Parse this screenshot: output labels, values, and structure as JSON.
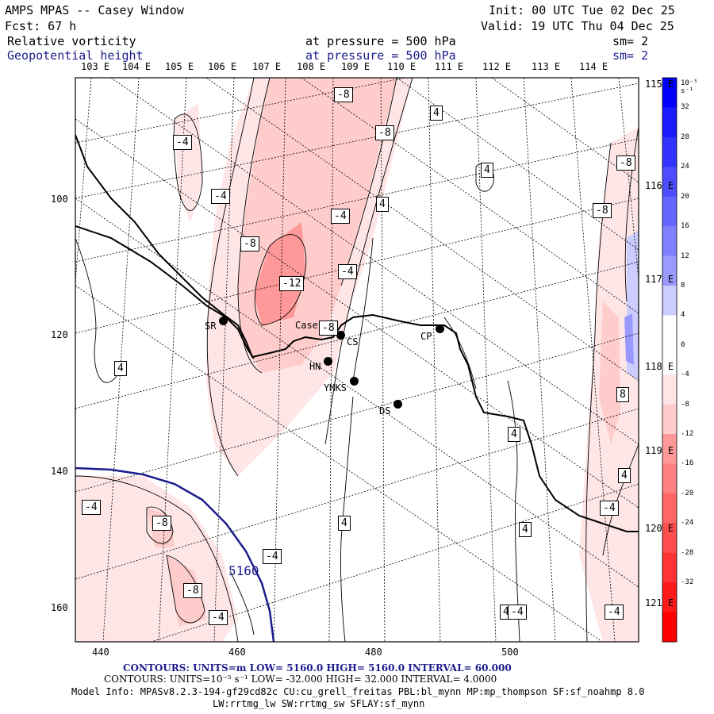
{
  "header": {
    "title": "AMPS MPAS -- Casey Window",
    "init": "Init: 00 UTC Tue 02 Dec 25",
    "fcst": "Fcst:   67 h",
    "valid": "Valid: 19 UTC Thu 04 Dec 25",
    "field1_name": "Relative vorticity",
    "field1_level": "at pressure =  500 hPa",
    "field1_sm": "sm= 2",
    "field2_name": "Geopotential height",
    "field2_level": "at pressure =  500 hPa",
    "field2_sm": "sm= 2"
  },
  "top_lon_labels": [
    "103 E",
    "104 E",
    "105 E",
    "106 E",
    "107 E",
    "108 E",
    "109 E",
    "110 E",
    "111 E",
    "112 E",
    "113 E",
    "114 E"
  ],
  "right_lon_labels": [
    "115 E",
    "116 E",
    "117 E",
    "118 E",
    "119 E",
    "120 E",
    "121 E"
  ],
  "x_ticks": [
    "440",
    "460",
    "480",
    "500"
  ],
  "y_ticks": [
    "100",
    "120",
    "140",
    "160"
  ],
  "stations": [
    {
      "label": "SR"
    },
    {
      "label": "Casey"
    },
    {
      "label": "CS"
    },
    {
      "label": "CP"
    },
    {
      "label": "HN"
    },
    {
      "label": "YMKS"
    },
    {
      "label": "DS"
    }
  ],
  "vorticity_contour_labels": [
    "-8",
    "4",
    "-8",
    "-4",
    "4",
    "-8",
    "-4",
    "4",
    "-8",
    "-4",
    "-8",
    "-4",
    "-12",
    "-8",
    "4",
    "8",
    "4",
    "4",
    "-4",
    "-4",
    "-8",
    "4",
    "4",
    "-4",
    "-8",
    "-4",
    "4",
    "-4",
    "-4"
  ],
  "height_contour_label": "5160",
  "colorbar": {
    "unit_label": "10⁻⁵ s⁻¹",
    "ticks": [
      "32",
      "28",
      "24",
      "20",
      "16",
      "12",
      "8",
      "4",
      "0",
      "-4",
      "-8",
      "-12",
      "-16",
      "-20",
      "-24",
      "-28",
      "-32"
    ],
    "colors": [
      "#0000ff",
      "#1a1aff",
      "#3333ff",
      "#4d4dff",
      "#6666ff",
      "#8080ff",
      "#9999ff",
      "#ccccff",
      "#ffffff",
      "#ffffff",
      "#ffe6e6",
      "#ffcccc",
      "#ff9999",
      "#ff8080",
      "#ff6666",
      "#ff4d4d",
      "#ff3333",
      "#ff1a1a",
      "#ff0000"
    ]
  },
  "footer": {
    "contours1": "CONTOURS:  UNITS=m  LOW=  5160.0        HIGH=  5160.0        INTERVAL=   60.000",
    "contours2": "CONTOURS:  UNITS=10⁻⁵ s⁻¹   LOW= -32.000       HIGH=  32.000       INTERVAL=   4.0000",
    "model_info": "Model Info: MPASv8.2.3-194-gf29cd82c CU:cu_grell_freitas PBL:bl_mynn MP:mp_thompson SF:sf_noahmp 8.0",
    "model_info2": "LW:rrtmg_lw SW:rrtmg_sw SFLAY:sf_mynn"
  }
}
